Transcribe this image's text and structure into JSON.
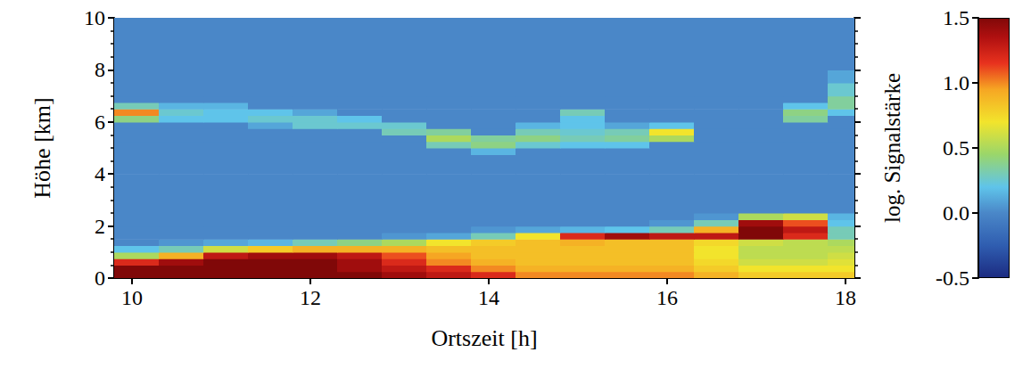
{
  "chart_data": {
    "type": "heatmap",
    "x_label": "Ortszeit [h]",
    "y_label": "Höhe [km]",
    "xlim": [
      9.8,
      18.1
    ],
    "xticks": [
      10,
      12,
      14,
      16,
      18
    ],
    "ylim": [
      0,
      10
    ],
    "yticks": [
      0,
      2,
      4,
      6,
      8,
      10
    ],
    "grid": false,
    "x_edges": [
      9.8,
      10.3,
      10.8,
      11.3,
      11.8,
      12.3,
      12.8,
      13.3,
      13.8,
      14.3,
      14.8,
      15.3,
      15.8,
      16.3,
      16.8,
      17.3,
      17.8,
      18.3
    ],
    "y_edges": [
      0,
      0.25,
      0.5,
      0.75,
      1.0,
      1.25,
      1.5,
      1.75,
      2.0,
      2.25,
      2.5,
      3,
      4,
      4.75,
      5.0,
      5.25,
      5.5,
      5.75,
      6.0,
      6.25,
      6.5,
      6.75,
      7.0,
      7.5,
      8,
      10
    ],
    "cells": [
      [
        1.5,
        1.5,
        1.5,
        1.5,
        1.5,
        1.5,
        1.4,
        1.3,
        1.2,
        1.0,
        1.0,
        1.0,
        1.0,
        0.9,
        0.8,
        0.8,
        0.8
      ],
      [
        1.5,
        1.5,
        1.5,
        1.5,
        1.5,
        1.4,
        1.3,
        1.2,
        1.0,
        0.9,
        0.9,
        0.9,
        0.9,
        0.8,
        0.7,
        0.7,
        0.7
      ],
      [
        1.2,
        1.4,
        1.5,
        1.5,
        1.5,
        1.4,
        1.2,
        1.0,
        0.9,
        0.85,
        0.85,
        0.85,
        0.85,
        0.75,
        0.6,
        0.6,
        0.65
      ],
      [
        0.5,
        0.9,
        1.3,
        1.4,
        1.4,
        1.3,
        1.1,
        0.95,
        0.85,
        0.85,
        0.85,
        0.85,
        0.85,
        0.7,
        0.55,
        0.55,
        0.6
      ],
      [
        0.2,
        0.3,
        0.6,
        0.8,
        0.9,
        0.9,
        0.9,
        0.85,
        0.85,
        0.85,
        0.85,
        0.85,
        0.85,
        0.7,
        0.55,
        0.55,
        0.55
      ],
      [
        0,
        0.05,
        0.1,
        0.15,
        0.3,
        0.4,
        0.5,
        0.7,
        0.8,
        0.85,
        0.9,
        0.85,
        0.85,
        0.75,
        0.6,
        0.55,
        0.5
      ],
      [
        0,
        0,
        0,
        0,
        0,
        0,
        0.05,
        0.1,
        0.3,
        0.7,
        1.2,
        1.4,
        1.3,
        1.3,
        1.5,
        1.2,
        0.3
      ],
      [
        0,
        0,
        0,
        0,
        0,
        0,
        0,
        0,
        0.05,
        0.1,
        0.15,
        0.2,
        0.3,
        0.9,
        1.5,
        1.3,
        0.3
      ],
      [
        0,
        0,
        0,
        0,
        0,
        0,
        0,
        0,
        0,
        0,
        0,
        0,
        0.05,
        0.3,
        1.4,
        1.1,
        0.2
      ],
      [
        0,
        0,
        0,
        0,
        0,
        0,
        0,
        0,
        0,
        0,
        0,
        0,
        0,
        0.05,
        0.5,
        0.6,
        0.15
      ],
      [
        0,
        0,
        0,
        0,
        0,
        0,
        0,
        0,
        0,
        0,
        0,
        0,
        0,
        0,
        0,
        0,
        0
      ],
      [
        0,
        0,
        0,
        0,
        0,
        0,
        0,
        0,
        0,
        0,
        0,
        0,
        0,
        0,
        0,
        0,
        0
      ],
      [
        0,
        0,
        0,
        0,
        0,
        0,
        0,
        0,
        0,
        0,
        0,
        0,
        0,
        0,
        0,
        0,
        0
      ],
      [
        0,
        0,
        0,
        0,
        0,
        0,
        0,
        0,
        0.15,
        0,
        0,
        0,
        0,
        0,
        0,
        0,
        0
      ],
      [
        0,
        0,
        0,
        0,
        0,
        0,
        0,
        0.3,
        0.4,
        0.25,
        0.2,
        0.2,
        0,
        0,
        0,
        0,
        0
      ],
      [
        0,
        0,
        0,
        0,
        0,
        0,
        0,
        0.5,
        0.35,
        0.4,
        0.3,
        0.35,
        0.5,
        0,
        0,
        0,
        0
      ],
      [
        0,
        0,
        0,
        0,
        0,
        0,
        0.3,
        0.35,
        0,
        0.3,
        0.25,
        0.3,
        0.7,
        0,
        0,
        0,
        0
      ],
      [
        0,
        0,
        0,
        0.1,
        0.25,
        0.25,
        0.25,
        0,
        0,
        0.15,
        0.2,
        0.1,
        0.2,
        0,
        0,
        0,
        0
      ],
      [
        0.4,
        0.2,
        0.2,
        0.25,
        0.25,
        0.2,
        0,
        0,
        0,
        0,
        0.2,
        0,
        0,
        0,
        0,
        0.35,
        0
      ],
      [
        1.0,
        0.25,
        0.2,
        0.2,
        0.1,
        0,
        0,
        0,
        0,
        0,
        0.3,
        0,
        0,
        0,
        0,
        0.4,
        0.2
      ],
      [
        0.3,
        0.15,
        0.15,
        0,
        0,
        0,
        0,
        0,
        0,
        0,
        0,
        0,
        0,
        0,
        0,
        0.2,
        0.35
      ],
      [
        0,
        0,
        0,
        0,
        0,
        0,
        0,
        0,
        0,
        0,
        0,
        0,
        0,
        0,
        0,
        0,
        0.35
      ],
      [
        0,
        0,
        0,
        0,
        0,
        0,
        0,
        0,
        0,
        0,
        0,
        0,
        0,
        0,
        0,
        0,
        0.25
      ],
      [
        0,
        0,
        0,
        0,
        0,
        0,
        0,
        0,
        0,
        0,
        0,
        0,
        0,
        0,
        0,
        0,
        0.1
      ],
      [
        0,
        0,
        0,
        0,
        0,
        0,
        0,
        0,
        0,
        0,
        0,
        0,
        0,
        0,
        0,
        0,
        0
      ]
    ],
    "colorbar": {
      "title": "log. Signalstärke",
      "range": [
        -0.5,
        1.5
      ],
      "ticks": [
        -0.5,
        {
          "value": 0,
          "label": "0.0"
        },
        0.5,
        {
          "value": 1,
          "label": "1.0"
        },
        1.5
      ]
    }
  }
}
